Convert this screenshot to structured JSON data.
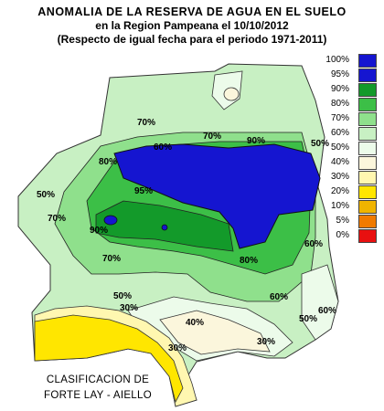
{
  "title": {
    "line1": "ANOMALIA DE LA RESERVA DE AGUA EN EL SUELO",
    "line2": "en la Region Pampeana el    10/10/2012",
    "line3": "(Respecto de igual fecha para el periodo 1971-2011)"
  },
  "credit": {
    "line1": "CLASIFICACION DE",
    "line2": "FORTE LAY - AIELLO"
  },
  "legend": [
    {
      "label": "100%",
      "color": "#1515d0"
    },
    {
      "label": "95%",
      "color": "#1515d0"
    },
    {
      "label": "90%",
      "color": "#139a2a"
    },
    {
      "label": "80%",
      "color": "#3cbf47"
    },
    {
      "label": "70%",
      "color": "#8fe08c"
    },
    {
      "label": "60%",
      "color": "#c8f0c3"
    },
    {
      "label": "50%",
      "color": "#ecfbea"
    },
    {
      "label": "40%",
      "color": "#fbf6dc"
    },
    {
      "label": "30%",
      "color": "#fff7b0"
    },
    {
      "label": "20%",
      "color": "#ffe600"
    },
    {
      "label": "10%",
      "color": "#f0b400"
    },
    {
      "label": "5%",
      "color": "#f07a00"
    },
    {
      "label": "0%",
      "color": "#e81010"
    }
  ],
  "map_labels": [
    {
      "id": "iso-70-n",
      "text": "70%"
    },
    {
      "id": "iso-60-n",
      "text": "60%"
    },
    {
      "id": "iso-70-ne",
      "text": "70%"
    },
    {
      "id": "iso-90-ne",
      "text": "90%"
    },
    {
      "id": "iso-80-ne",
      "text": "80%"
    },
    {
      "id": "iso-50-w",
      "text": "50%"
    },
    {
      "id": "iso-70-w",
      "text": "70%"
    },
    {
      "id": "iso-90-c",
      "text": "90%"
    },
    {
      "id": "iso-95-c",
      "text": "95%"
    },
    {
      "id": "iso-70-c",
      "text": "70%"
    },
    {
      "id": "iso-60-e",
      "text": "60%"
    },
    {
      "id": "iso-80-e",
      "text": "80%"
    },
    {
      "id": "iso-60-se",
      "text": "60%"
    },
    {
      "id": "iso-50-s",
      "text": "50%"
    },
    {
      "id": "iso-30-s",
      "text": "30%"
    },
    {
      "id": "iso-40-s",
      "text": "40%"
    },
    {
      "id": "iso-30-sw",
      "text": "30%"
    },
    {
      "id": "iso-30-se",
      "text": "30%"
    },
    {
      "id": "iso-50-se",
      "text": "50%"
    },
    {
      "id": "iso-60-ee",
      "text": "60%"
    },
    {
      "id": "iso-50-ne",
      "text": "50%"
    }
  ]
}
